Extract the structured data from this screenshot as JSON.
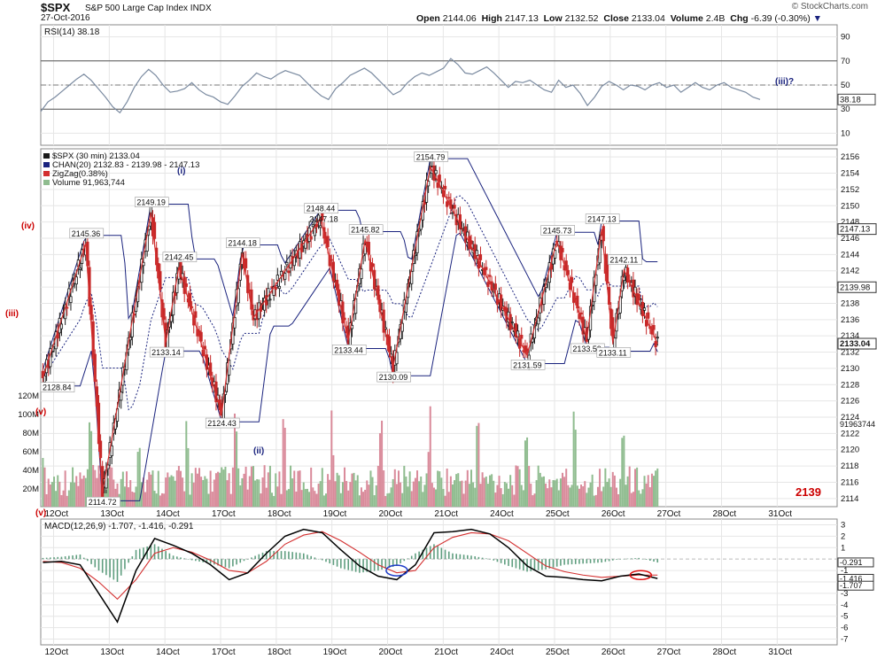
{
  "header": {
    "symbol": "$SPX",
    "name": "S&P 500 Large Cap Index",
    "exchange": "INDX",
    "date": "27-Oct-2016",
    "copyright": "© StockCharts.com",
    "open_label": "Open",
    "open": "2144.06",
    "high_label": "High",
    "high": "2147.13",
    "low_label": "Low",
    "low": "2132.52",
    "close_label": "Close",
    "close": "2133.04",
    "volume_label": "Volume",
    "volume": "2.4B",
    "chg_label": "Chg",
    "chg": "-6.39 (-0.30%)"
  },
  "colors": {
    "price_bar": "#c62828",
    "price_bar_up": "#1a1a1a",
    "zigzag": "#d32f2f",
    "channel": "#1a237e",
    "volume_up": "#8fbc8f",
    "volume_down": "#d98a9a",
    "rsi": "#7a8aa0",
    "macd": "#000000",
    "signal": "#d32f2f",
    "histogram": "#5f9e7f",
    "wave_label_red": "#cc0000",
    "wave_label_blue": "#1a237e",
    "grid": "#e6e6e6"
  },
  "chart_data": [
    {
      "type": "line",
      "title": "RSI(14) 38.18",
      "series": [
        {
          "name": "RSI(14)",
          "x_index": [
            0,
            4,
            8,
            12,
            16,
            20,
            24,
            28,
            32,
            36,
            40,
            44,
            48,
            52,
            56,
            60,
            64,
            68,
            72,
            76,
            80,
            84,
            88,
            92,
            96,
            100,
            104,
            108,
            112,
            116,
            120,
            124,
            128,
            132,
            136,
            140,
            144,
            148,
            152,
            156,
            160,
            164,
            168,
            172,
            176,
            180,
            184,
            188,
            192,
            196,
            200,
            204,
            208,
            212,
            216,
            220,
            224,
            228,
            232,
            236,
            240,
            244,
            248,
            252,
            256,
            260,
            264,
            268,
            272,
            276,
            280,
            284,
            288,
            292,
            296,
            300,
            304,
            308,
            312,
            316,
            320,
            324,
            328,
            332,
            336,
            340,
            344,
            348,
            352,
            356,
            360,
            364,
            368,
            372,
            376,
            380,
            384,
            388,
            392,
            396,
            400
          ],
          "values": [
            28,
            36,
            40,
            45,
            50,
            55,
            59,
            54,
            47,
            40,
            32,
            27,
            36,
            48,
            57,
            63,
            58,
            50,
            44,
            45,
            47,
            52,
            46,
            42,
            40,
            36,
            34,
            41,
            49,
            54,
            60,
            57,
            55,
            59,
            62,
            60,
            58,
            52,
            46,
            41,
            38,
            47,
            52,
            58,
            61,
            64,
            60,
            54,
            48,
            42,
            45,
            52,
            57,
            60,
            58,
            61,
            64,
            72,
            67,
            60,
            59,
            62,
            65,
            60,
            54,
            48,
            53,
            52,
            54,
            50,
            46,
            44,
            54,
            48,
            50,
            43,
            33,
            40,
            49,
            53,
            50,
            46,
            50,
            49,
            46,
            50,
            52,
            48,
            50,
            44,
            48,
            52,
            48,
            46,
            50,
            52,
            48,
            46,
            44,
            40,
            38
          ]
        }
      ],
      "ylim": [
        0,
        100
      ],
      "yticks": [
        10,
        30,
        50,
        70,
        90
      ],
      "overbought": 70,
      "oversold": 30,
      "last_value": "38.18",
      "annotation": "(iii)?"
    },
    {
      "type": "candlestick",
      "title": "$SPX (30 min) 2133.04",
      "legend": [
        "$SPX (30 min) 2133.04",
        "CHAN(20) 2132.83 - 2139.98 - 2147.13",
        "ZigZag(0.38%)",
        "Volume 91,963,744"
      ],
      "ylim": [
        2113,
        2157
      ],
      "yticks": [
        2114,
        2116,
        2118,
        2120,
        2122,
        2124,
        2126,
        2128,
        2130,
        2132,
        2134,
        2136,
        2138,
        2140,
        2142,
        2144,
        2146,
        2148,
        2150,
        2152,
        2154,
        2156
      ],
      "xticks": [
        "12Oct",
        "13Oct",
        "14Oct",
        "17Oct",
        "18Oct",
        "19Oct",
        "20Oct",
        "21Oct",
        "24Oct",
        "25Oct",
        "26Oct",
        "27Oct",
        "28Oct",
        "31Oct"
      ],
      "zigzag_points": [
        {
          "x": 0,
          "y": 2128.84,
          "label": "2128.84"
        },
        {
          "x": 23,
          "y": 2145.36,
          "label": "2145.36"
        },
        {
          "x": 32,
          "y": 2114.72,
          "label": "2114.72"
        },
        {
          "x": 58,
          "y": 2149.19,
          "label": "2149.19"
        },
        {
          "x": 66,
          "y": 2133.14,
          "label": "2133.14"
        },
        {
          "x": 73,
          "y": 2142.45,
          "label": "2142.45"
        },
        {
          "x": 96,
          "y": 2124.43,
          "label": "2124.43"
        },
        {
          "x": 107,
          "y": 2144.18,
          "label": "2144.18"
        },
        {
          "x": 113,
          "y": 2136.2,
          "label": ""
        },
        {
          "x": 149,
          "y": 2148.44,
          "label": "2148.44"
        },
        {
          "x": 164,
          "y": 2133.44,
          "label": "2133.44"
        },
        {
          "x": 173,
          "y": 2145.82,
          "label": "2145.82"
        },
        {
          "x": 188,
          "y": 2130.09,
          "label": "2130.09"
        },
        {
          "x": 208,
          "y": 2154.79,
          "label": "2154.79"
        },
        {
          "x": 260,
          "y": 2131.59,
          "label": "2131.59"
        },
        {
          "x": 276,
          "y": 2145.73,
          "label": "2145.73"
        },
        {
          "x": 292,
          "y": 2133.59,
          "label": "2133.59"
        },
        {
          "x": 300,
          "y": 2147.13,
          "label": "2147.13"
        },
        {
          "x": 306,
          "y": 2133.11,
          "label": "2133.11"
        },
        {
          "x": 312,
          "y": 2142.11,
          "label": "2142.11"
        },
        {
          "x": 330,
          "y": 2133.04,
          "label": ""
        }
      ],
      "price_labels": [
        "2147.18"
      ],
      "last_prices": {
        "upper": "2147.13",
        "mid": "2139.98",
        "close": "2133.04"
      },
      "volume_axis": {
        "label": "Volume",
        "ticks": [
          "20M",
          "40M",
          "60M",
          "80M",
          "100M",
          "120M"
        ],
        "last": "91963744"
      },
      "wave_labels": [
        {
          "text": "(iv)",
          "color": "red"
        },
        {
          "text": "(iii)",
          "color": "red"
        },
        {
          "text": "(v)",
          "color": "red"
        },
        {
          "text": "(i)",
          "color": "blue"
        },
        {
          "text": "(ii)",
          "color": "blue"
        },
        {
          "text": "(v)",
          "color": "red"
        }
      ],
      "target_label": "2139"
    },
    {
      "type": "line",
      "title": "MACD(12,26,9) -1.707, -1.416, -0.291",
      "series": [
        {
          "name": "MACD",
          "x_index": [
            0,
            10,
            20,
            30,
            40,
            50,
            60,
            70,
            80,
            90,
            100,
            110,
            120,
            130,
            140,
            150,
            160,
            170,
            180,
            190,
            200,
            210,
            220,
            230,
            240,
            250,
            260,
            270,
            280,
            290,
            300,
            310,
            320,
            330
          ],
          "values": [
            -0.3,
            -0.2,
            -0.5,
            -3.0,
            -5.5,
            -1.0,
            1.8,
            1.2,
            0.5,
            -0.5,
            -1.8,
            -1.2,
            0.5,
            2.0,
            2.6,
            2.3,
            0.8,
            -0.6,
            -1.5,
            -1.8,
            -0.5,
            2.3,
            2.4,
            2.6,
            2.2,
            1.0,
            -0.6,
            -1.5,
            -1.6,
            -1.8,
            -1.9,
            -1.5,
            -1.3,
            -1.7
          ]
        },
        {
          "name": "Signal",
          "x_index": [
            0,
            10,
            20,
            30,
            40,
            50,
            60,
            70,
            80,
            90,
            100,
            110,
            120,
            130,
            140,
            150,
            160,
            170,
            180,
            190,
            200,
            210,
            220,
            230,
            240,
            250,
            260,
            270,
            280,
            290,
            300,
            310,
            320,
            330
          ],
          "values": [
            -0.2,
            -0.3,
            -0.8,
            -2.0,
            -3.5,
            -1.8,
            0.5,
            1.0,
            0.6,
            -0.1,
            -1.0,
            -1.2,
            -0.2,
            1.3,
            2.1,
            2.4,
            1.6,
            0.6,
            -0.5,
            -1.2,
            -1.0,
            1.0,
            1.9,
            2.3,
            2.2,
            1.6,
            0.5,
            -0.6,
            -1.1,
            -1.4,
            -1.6,
            -1.5,
            -1.4,
            -1.4
          ]
        },
        {
          "name": "Histogram",
          "x_index": [
            0,
            10,
            20,
            30,
            40,
            50,
            60,
            70,
            80,
            90,
            100,
            110,
            120,
            130,
            140,
            150,
            160,
            170,
            180,
            190,
            200,
            210,
            220,
            230,
            240,
            250,
            260,
            270,
            280,
            290,
            300,
            310,
            320,
            330
          ],
          "values": [
            0.1,
            0.2,
            0.4,
            -1.0,
            -2.0,
            0.8,
            1.3,
            0.3,
            -0.1,
            -0.4,
            -0.8,
            0.0,
            0.7,
            0.7,
            0.5,
            -0.1,
            -0.8,
            -1.2,
            -1.0,
            -0.6,
            0.5,
            1.3,
            0.5,
            0.3,
            0.0,
            -0.6,
            -1.1,
            -0.9,
            -0.5,
            -0.4,
            -0.3,
            0.0,
            0.1,
            -0.3
          ]
        }
      ],
      "ylim": [
        -7.5,
        3.5
      ],
      "yticks": [
        3,
        2,
        1,
        -1,
        -2,
        -3,
        -4,
        -5,
        -6,
        -7
      ],
      "last_values": {
        "histogram": "-0.291",
        "signal": "-1.416",
        "macd": "-1.707"
      }
    }
  ]
}
